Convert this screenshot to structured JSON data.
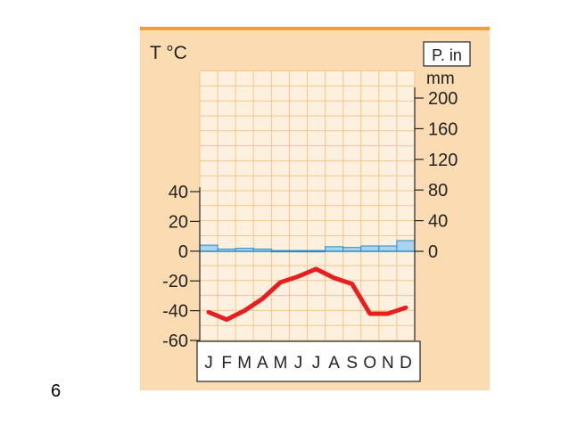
{
  "slide_number": "6",
  "colors": {
    "panel": "#fbdcb2",
    "plot": "#fdf0de",
    "grid": "#f4c58a",
    "top_border": "#f39c3a",
    "temperature_line": "#e62020",
    "precip_fill": "#a8d4f0",
    "precip_stroke": "#2b8cc4"
  },
  "chart_data": {
    "type": "climograph",
    "left_axis": {
      "title": "T °C",
      "ticks": [
        "40",
        "20",
        "0",
        "-20",
        "-40",
        "-60"
      ],
      "tick_values": [
        40,
        20,
        0,
        -20,
        -40,
        -60
      ],
      "range": [
        -60,
        40
      ]
    },
    "right_axis": {
      "title_line1": "P. in",
      "title_line2": "mm",
      "ticks": [
        "200",
        "160",
        "120",
        "80",
        "40",
        "0"
      ],
      "tick_values": [
        200,
        160,
        120,
        80,
        40,
        0
      ],
      "range": [
        0,
        200
      ]
    },
    "categories": [
      "J",
      "F",
      "M",
      "A",
      "M",
      "J",
      "J",
      "A",
      "S",
      "O",
      "N",
      "D"
    ],
    "temperature": [
      -41,
      -46,
      -40,
      -32,
      -21,
      -17,
      -12,
      -18,
      -22,
      -42,
      -42,
      -38
    ],
    "precipitation": [
      8,
      3,
      4,
      3,
      1,
      1,
      1,
      6,
      5,
      7,
      7,
      14
    ],
    "grid": true
  }
}
